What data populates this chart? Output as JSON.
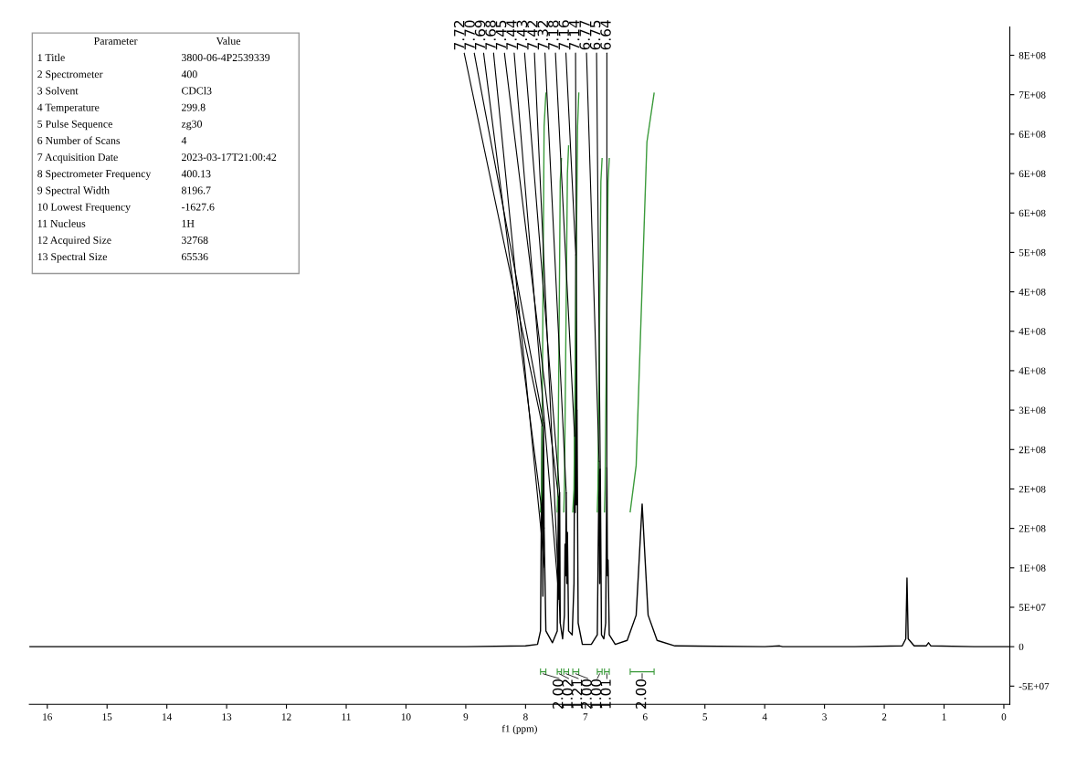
{
  "chart_data": {
    "type": "line",
    "xlabel": "f1 (ppm)",
    "xlim": [
      16.3,
      -0.1
    ],
    "xticks": [
      16,
      15,
      14,
      13,
      12,
      11,
      10,
      9,
      8,
      7,
      6,
      5,
      4,
      3,
      2,
      1,
      0
    ],
    "ylim": [
      -73000000,
      786000000
    ],
    "yticks": [
      {
        "value": -50000000,
        "label": "-5E+07"
      },
      0,
      {
        "value": 50000000,
        "label": "5E+07"
      },
      {
        "value": 100000000,
        "label": "1E+08"
      },
      {
        "value": 150000000,
        "label": "2E+08"
      },
      {
        "value": 200000000,
        "label": "2E+08"
      },
      {
        "value": 250000000,
        "label": "2E+08"
      },
      {
        "value": 300000000,
        "label": "3E+08"
      },
      {
        "value": 350000000,
        "label": "4E+08"
      },
      {
        "value": 400000000,
        "label": "4E+08"
      },
      {
        "value": 450000000,
        "label": "4E+08"
      },
      {
        "value": 500000000,
        "label": "5E+08"
      },
      {
        "value": 550000000,
        "label": "6E+08"
      },
      {
        "value": 600000000,
        "label": "6E+08"
      },
      {
        "value": 650000000,
        "label": "6E+08"
      },
      {
        "value": 700000000,
        "label": "7E+08"
      },
      {
        "value": 750000000,
        "label": "8E+08"
      }
    ],
    "grid": false,
    "marker": "none",
    "line_style": "solid",
    "series": [
      {
        "color": "#000000",
        "x": [
          16.3,
          12.0,
          9.0,
          8.0,
          7.8,
          7.75,
          7.725,
          7.715,
          7.71,
          7.7,
          7.69,
          7.66,
          7.55,
          7.47,
          7.45,
          7.44,
          7.43,
          7.42,
          7.38,
          7.35,
          7.34,
          7.33,
          7.32,
          7.31,
          7.3,
          7.28,
          7.22,
          7.19,
          7.18,
          7.17,
          7.16,
          7.15,
          7.14,
          7.12,
          7.05,
          6.9,
          6.8,
          6.77,
          6.76,
          6.75,
          6.73,
          6.69,
          6.66,
          6.64,
          6.63,
          6.62,
          6.6,
          6.5,
          6.3,
          6.15,
          6.1,
          6.05,
          6.0,
          5.95,
          5.8,
          5.5,
          4.0,
          3.75,
          3.7,
          2.5,
          1.7,
          1.64,
          1.62,
          1.6,
          1.5,
          1.3,
          1.26,
          1.22,
          0.5,
          -0.1
        ],
        "values": [
          0,
          0,
          0,
          1000000,
          3000000,
          20000000,
          280000000,
          150000000,
          64000000,
          284000000,
          150000000,
          20000000,
          5000000,
          20000000,
          190000000,
          60000000,
          195000000,
          30000000,
          10000000,
          40000000,
          130000000,
          90000000,
          195000000,
          80000000,
          145000000,
          20000000,
          15000000,
          80000000,
          267000000,
          170000000,
          497000000,
          180000000,
          300000000,
          30000000,
          3000000,
          3000000,
          15000000,
          235000000,
          80000000,
          225000000,
          15000000,
          10000000,
          30000000,
          227000000,
          90000000,
          110000000,
          15000000,
          3000000,
          8000000,
          40000000,
          110000000,
          181000000,
          110000000,
          40000000,
          8000000,
          1000000,
          0,
          1000000,
          0,
          0,
          1000000,
          10000000,
          87000000,
          10000000,
          1000000,
          1000000,
          5000000,
          1000000,
          0,
          0
        ]
      },
      {
        "color": "#3a9a3a",
        "x": [
          7.75,
          7.73,
          7.69,
          7.66
        ],
        "values": [
          171000000,
          200000000,
          660000000,
          702000000
        ]
      },
      {
        "color": "#3a9a3a",
        "x": [
          7.47,
          7.46,
          7.42,
          7.4
        ],
        "values": [
          171000000,
          200000000,
          590000000,
          619000000
        ]
      },
      {
        "color": "#3a9a3a",
        "x": [
          7.36,
          7.35,
          7.3,
          7.28
        ],
        "values": [
          171000000,
          200000000,
          600000000,
          635000000
        ]
      },
      {
        "color": "#3a9a3a",
        "x": [
          7.21,
          7.19,
          7.13,
          7.11
        ],
        "values": [
          171000000,
          200000000,
          660000000,
          702000000
        ]
      },
      {
        "color": "#3a9a3a",
        "x": [
          6.8,
          6.79,
          6.74,
          6.72
        ],
        "values": [
          171000000,
          200000000,
          590000000,
          619000000
        ]
      },
      {
        "color": "#3a9a3a",
        "x": [
          6.68,
          6.67,
          6.62,
          6.6
        ],
        "values": [
          171000000,
          200000000,
          590000000,
          619000000
        ]
      },
      {
        "color": "#3a9a3a",
        "x": [
          6.25,
          6.15,
          5.97,
          5.85
        ],
        "values": [
          171000000,
          230000000,
          640000000,
          702000000
        ]
      }
    ],
    "annotations": [
      "Parameter",
      "Value",
      "1 Title",
      "3800-06-4P2539339",
      "2 Spectrometer",
      "400",
      "3 Solvent",
      "CDCl3",
      "4 Temperature",
      "299.8",
      "5 Pulse Sequence",
      "zg30",
      "6 Number of Scans",
      "4",
      "7 Acquisition Date",
      "2023-03-17T21:00:42",
      "8 Spectrometer Frequency",
      "400.13",
      "9 Spectral Width",
      "8196.7",
      "10 Lowest Frequency",
      "-1627.6",
      "11 Nucleus",
      "1H",
      "12 Acquired Size",
      "32768",
      "13 Spectral Size",
      "65536",
      {
        "text": "7.72",
        "x": 7.72,
        "y": 280000000
      },
      {
        "text": "7.70",
        "x": 7.7,
        "y": 284000000
      },
      {
        "text": "7.69",
        "x": 7.69,
        "y": 150000000
      },
      {
        "text": "7.68",
        "x": 7.68,
        "y": 100000000
      },
      {
        "text": "7.45",
        "x": 7.45,
        "y": 190000000
      },
      {
        "text": "7.44",
        "x": 7.44,
        "y": 60000000
      },
      {
        "text": "7.43",
        "x": 7.43,
        "y": 195000000
      },
      {
        "text": "7.42",
        "x": 7.42,
        "y": 30000000
      },
      {
        "text": "7.32",
        "x": 7.32,
        "y": 195000000
      },
      {
        "text": "7.18",
        "x": 7.18,
        "y": 267000000
      },
      {
        "text": "7.16",
        "x": 7.16,
        "y": 497000000
      },
      {
        "text": "7.14",
        "x": 7.14,
        "y": 300000000
      },
      {
        "text": "6.77",
        "x": 6.77,
        "y": 235000000
      },
      {
        "text": "6.75",
        "x": 6.75,
        "y": 225000000
      },
      {
        "text": "6.64",
        "x": 6.64,
        "y": 227000000
      },
      "2.00",
      "1.02",
      "1.21",
      "2.00",
      "1.00",
      "1.01",
      "2.00"
    ]
  }
}
